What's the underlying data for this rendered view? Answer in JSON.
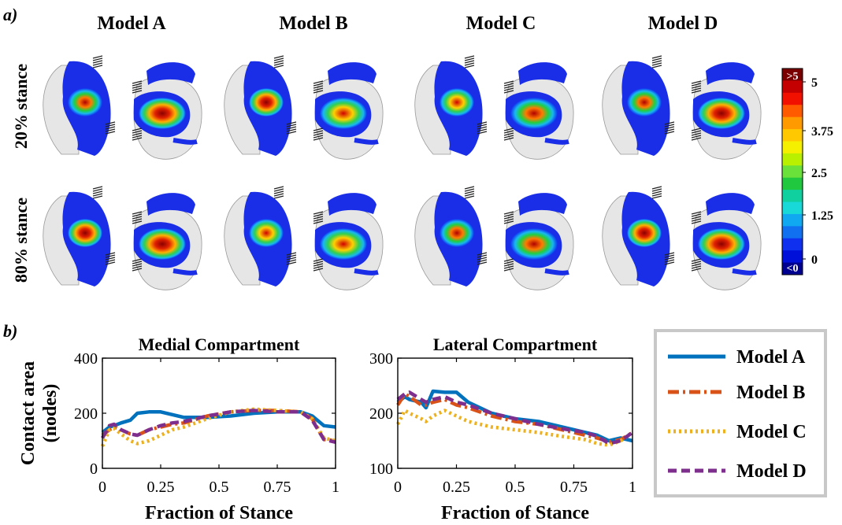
{
  "panel_a": {
    "label": "a)",
    "models": [
      "Model A",
      "Model B",
      "Model C",
      "Model D"
    ],
    "rows": [
      "20% stance",
      "80% stance"
    ],
    "colorbar": {
      "top_label": ">5",
      "bottom_label": "<0",
      "ticks": [
        "5",
        "3.75",
        "2.5",
        "1.25",
        "0"
      ],
      "colors": [
        "#7a0000",
        "#c40000",
        "#f21000",
        "#ff5a00",
        "#ff9a00",
        "#ffc800",
        "#f4f000",
        "#b8f000",
        "#6ae03a",
        "#20c840",
        "#10d0a0",
        "#18d8d8",
        "#10a8f0",
        "#1070f0",
        "#1030f0",
        "#0010d8",
        "#000090"
      ]
    }
  },
  "panel_b": {
    "label": "b)",
    "legend": [
      {
        "name": "Model A",
        "color": "#0072BD",
        "dash": "solid"
      },
      {
        "name": "Model B",
        "color": "#D95319",
        "dash": "dashdot"
      },
      {
        "name": "Model C",
        "color": "#EDB120",
        "dash": "dotted"
      },
      {
        "name": "Model D",
        "color": "#7E2F8E",
        "dash": "dashed"
      }
    ]
  },
  "chart_data": [
    {
      "type": "line",
      "title": "Medial Compartment",
      "xlabel": "Fraction of Stance",
      "ylabel": "Contact area\n(nodes)",
      "xlim": [
        0,
        1
      ],
      "ylim": [
        0,
        400
      ],
      "xticks": [
        "0",
        "0.25",
        "0.5",
        "0.75",
        "1"
      ],
      "yticks": [
        "0",
        "200",
        "400"
      ],
      "x": [
        0,
        0.03,
        0.05,
        0.08,
        0.12,
        0.15,
        0.2,
        0.25,
        0.3,
        0.35,
        0.45,
        0.55,
        0.65,
        0.75,
        0.85,
        0.9,
        0.95,
        1.0
      ],
      "series": [
        {
          "name": "Model A",
          "values": [
            130,
            150,
            155,
            165,
            175,
            200,
            205,
            205,
            195,
            185,
            185,
            190,
            200,
            205,
            205,
            190,
            155,
            150
          ]
        },
        {
          "name": "Model B",
          "values": [
            120,
            140,
            150,
            140,
            125,
            120,
            140,
            150,
            160,
            165,
            190,
            205,
            210,
            210,
            205,
            180,
            105,
            100
          ]
        },
        {
          "name": "Model C",
          "values": [
            80,
            140,
            145,
            125,
            100,
            90,
            100,
            120,
            140,
            150,
            180,
            205,
            215,
            210,
            205,
            180,
            110,
            100
          ]
        },
        {
          "name": "Model D",
          "values": [
            110,
            155,
            160,
            140,
            125,
            120,
            140,
            155,
            165,
            170,
            190,
            205,
            210,
            205,
            205,
            175,
            105,
            95
          ]
        }
      ]
    },
    {
      "type": "line",
      "title": "Lateral Compartment",
      "xlabel": "Fraction of Stance",
      "ylabel": "",
      "xlim": [
        0,
        1
      ],
      "ylim": [
        100,
        300
      ],
      "xticks": [
        "0",
        "0.25",
        "0.5",
        "0.75",
        "1"
      ],
      "yticks": [
        "100",
        "200",
        "300"
      ],
      "x": [
        0,
        0.03,
        0.05,
        0.1,
        0.12,
        0.15,
        0.2,
        0.25,
        0.3,
        0.4,
        0.5,
        0.6,
        0.7,
        0.8,
        0.85,
        0.9,
        0.95,
        1.0
      ],
      "series": [
        {
          "name": "Model A",
          "values": [
            220,
            230,
            225,
            220,
            210,
            240,
            238,
            238,
            220,
            200,
            190,
            185,
            175,
            165,
            160,
            150,
            155,
            150
          ]
        },
        {
          "name": "Model B",
          "values": [
            215,
            235,
            230,
            215,
            215,
            220,
            225,
            215,
            210,
            195,
            185,
            180,
            170,
            160,
            155,
            148,
            152,
            165
          ]
        },
        {
          "name": "Model C",
          "values": [
            180,
            205,
            200,
            190,
            185,
            195,
            205,
            195,
            185,
            175,
            170,
            165,
            158,
            152,
            145,
            142,
            150,
            165
          ]
        },
        {
          "name": "Model D",
          "values": [
            225,
            235,
            238,
            225,
            220,
            225,
            230,
            220,
            215,
            200,
            190,
            180,
            172,
            165,
            158,
            145,
            150,
            165
          ]
        }
      ]
    }
  ]
}
